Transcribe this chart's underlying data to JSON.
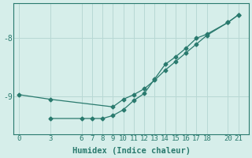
{
  "xlabel": "Humidex (Indice chaleur)",
  "background_color": "#d6eeea",
  "line_color": "#2a7a6e",
  "grid_color": "#b8d8d4",
  "line1_x": [
    0,
    3,
    9,
    10,
    11,
    12,
    13,
    14,
    15,
    16,
    17,
    18,
    20,
    21
  ],
  "line1_y": [
    -8.97,
    -9.05,
    -9.18,
    -9.05,
    -8.97,
    -8.87,
    -8.72,
    -8.55,
    -8.4,
    -8.25,
    -8.1,
    -7.95,
    -7.73,
    -7.6
  ],
  "line2_x": [
    3,
    6,
    7,
    8,
    9,
    10,
    11,
    12,
    13,
    14,
    15,
    16,
    17,
    18,
    20,
    21
  ],
  "line2_y": [
    -9.38,
    -9.38,
    -9.38,
    -9.38,
    -9.33,
    -9.23,
    -9.07,
    -8.95,
    -8.7,
    -8.45,
    -8.32,
    -8.17,
    -8.0,
    -7.93,
    -7.73,
    -7.6
  ],
  "xticks": [
    0,
    3,
    6,
    7,
    8,
    9,
    10,
    11,
    12,
    13,
    14,
    15,
    16,
    17,
    18,
    20,
    21
  ],
  "yticks": [
    -9,
    -8
  ],
  "xlim": [
    -0.5,
    22.0
  ],
  "ylim": [
    -9.65,
    -7.4
  ],
  "figsize": [
    3.2,
    2.0
  ],
  "dpi": 100,
  "tick_fontsize": 6.5,
  "xlabel_fontsize": 7.5
}
